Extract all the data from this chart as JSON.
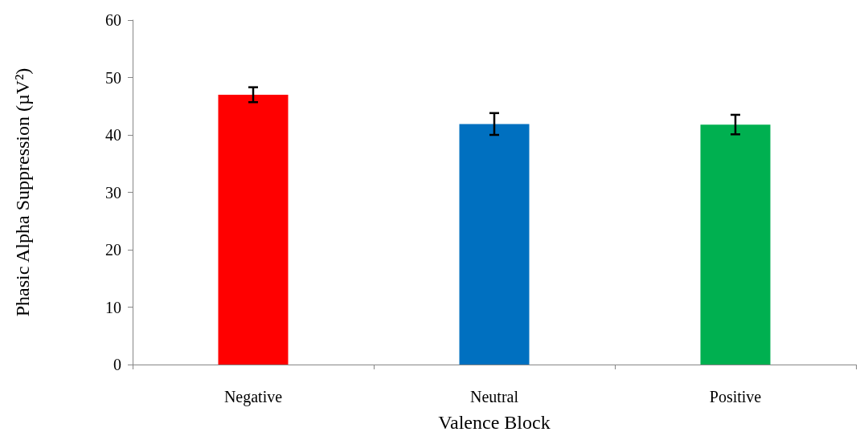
{
  "chart_data": {
    "type": "bar",
    "xlabel": "Valence Block",
    "ylabel": "Phasic Alpha Suppression (µV²)",
    "categories": [
      "Negative",
      "Neutral",
      "Positive"
    ],
    "values": [
      47.0,
      41.9,
      41.8
    ],
    "colors": [
      "#ff0000",
      "#0070c0",
      "#00b050"
    ],
    "errors": [
      1.3,
      1.9,
      1.7
    ],
    "ylim": [
      0,
      60
    ],
    "yticks": [
      0,
      10,
      20,
      30,
      40,
      50,
      60
    ]
  }
}
